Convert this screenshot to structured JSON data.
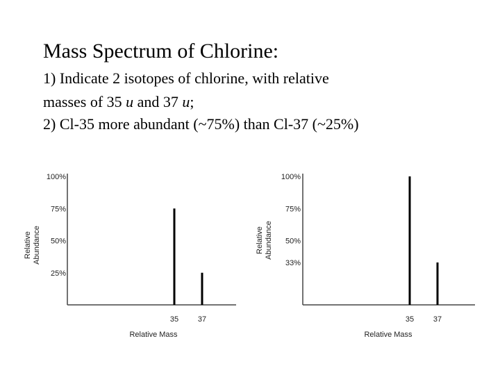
{
  "slide": {
    "title": "Mass Spectrum of Chlorine:",
    "line1": "1) Indicate 2 isotopes of chlorine, with relative",
    "line2_a": "masses of 35 ",
    "line2_u1": "u",
    "line2_b": " and 37 ",
    "line2_u2": "u",
    "line2_c": ";",
    "line3": "2) Cl-35 more abundant (~75%) than Cl-37 (~25%)"
  },
  "chart_data": [
    {
      "type": "bar",
      "xlabel": "Relative Mass",
      "ylabel": "Relative Abundance",
      "ylabel_line1": "Relative",
      "ylabel_line2": "Abundance",
      "yticks": [
        "100%",
        "75%",
        "50%",
        "25%"
      ],
      "ytick_values": [
        100,
        75,
        50,
        25
      ],
      "categories": [
        "35",
        "37"
      ],
      "values": [
        75,
        25
      ],
      "ylim": [
        0,
        100
      ],
      "grid": false
    },
    {
      "type": "bar",
      "xlabel": "Relative Mass",
      "ylabel": "Relative Abundance",
      "ylabel_line1": "Relative",
      "ylabel_line2": "Abundance",
      "yticks": [
        "100%",
        "75%",
        "50%",
        "33%"
      ],
      "ytick_values": [
        100,
        75,
        50,
        33
      ],
      "categories": [
        "35",
        "37"
      ],
      "values": [
        100,
        33
      ],
      "ylim": [
        0,
        100
      ],
      "grid": false
    }
  ]
}
